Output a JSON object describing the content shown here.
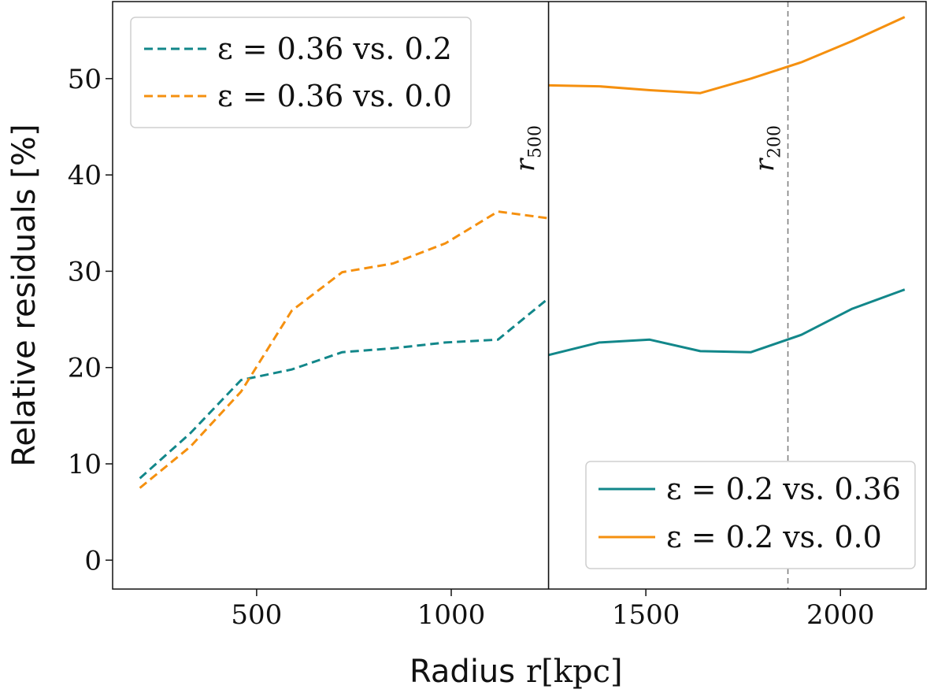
{
  "chart_data": {
    "type": "line",
    "xlabel": "Radius",
    "xlabel_math": "r[kpc]",
    "ylabel": "Relative residuals [%]",
    "xlim": [
      130,
      2220
    ],
    "ylim": [
      -3,
      58
    ],
    "x_ticks": [
      500,
      1000,
      1500,
      2000
    ],
    "y_ticks": [
      0,
      10,
      20,
      30,
      40,
      50
    ],
    "grid": false,
    "colors": {
      "teal": "#12878a",
      "orange": "#f5900f",
      "axis": "#111111",
      "r200_line": "#808080"
    },
    "series": [
      {
        "name": "ε = 0.36 vs. 0.2",
        "color": "#12878a",
        "style": "dashed",
        "x": [
          200,
          330,
          460,
          590,
          720,
          850,
          985,
          1120,
          1250
        ],
        "y": [
          8.5,
          13.2,
          18.7,
          19.8,
          21.6,
          22.0,
          22.6,
          22.9,
          27.2
        ]
      },
      {
        "name": "ε = 0.36 vs. 0.0",
        "color": "#f5900f",
        "style": "dashed",
        "x": [
          200,
          330,
          460,
          590,
          720,
          850,
          985,
          1120,
          1250
        ],
        "y": [
          7.5,
          11.8,
          17.5,
          25.9,
          29.9,
          30.8,
          32.9,
          36.2,
          35.5
        ]
      },
      {
        "name": "ε = 0.2 vs. 0.36",
        "color": "#12878a",
        "style": "solid",
        "x": [
          1250,
          1380,
          1510,
          1640,
          1770,
          1900,
          2030,
          2165
        ],
        "y": [
          21.3,
          22.6,
          22.9,
          21.7,
          21.6,
          23.4,
          26.1,
          28.1
        ]
      },
      {
        "name": "ε = 0.2 vs. 0.0",
        "color": "#f5900f",
        "style": "solid",
        "x": [
          1250,
          1380,
          1510,
          1640,
          1770,
          1900,
          2030,
          2165
        ],
        "y": [
          49.3,
          49.2,
          48.8,
          48.5,
          50.0,
          51.7,
          53.9,
          56.4
        ]
      }
    ],
    "vlines": [
      {
        "x": 1250,
        "style": "solid",
        "label": "r",
        "sub": "500"
      },
      {
        "x": 1865,
        "style": "dashed",
        "label": "r",
        "sub": "200"
      }
    ],
    "legends": [
      {
        "position": "top-left",
        "entries": [
          "ε = 0.36 vs. 0.2",
          "ε = 0.36 vs. 0.0"
        ]
      },
      {
        "position": "bottom-right",
        "entries": [
          "ε = 0.2 vs. 0.36",
          "ε = 0.2 vs. 0.0"
        ]
      }
    ]
  }
}
